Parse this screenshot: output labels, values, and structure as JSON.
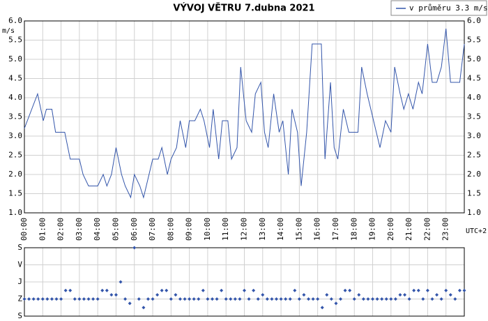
{
  "chart_data": [
    {
      "type": "line",
      "title": "VÝVOJ VĚTRU  7.dubna 2021",
      "y_label": "m/s",
      "x_label": "UTC+2",
      "xlim": [
        0,
        24
      ],
      "xticks": [
        {
          "value": 0,
          "label": "00:00"
        },
        {
          "value": 1,
          "label": "01:00"
        },
        {
          "value": 2,
          "label": "02:00"
        },
        {
          "value": 3,
          "label": "03:00"
        },
        {
          "value": 4,
          "label": "04:00"
        },
        {
          "value": 5,
          "label": "05:00"
        },
        {
          "value": 6,
          "label": "06:00"
        },
        {
          "value": 7,
          "label": "07:00"
        },
        {
          "value": 8,
          "label": "08:00"
        },
        {
          "value": 9,
          "label": "09:00"
        },
        {
          "value": 10,
          "label": "10:00"
        },
        {
          "value": 11,
          "label": "11:00"
        },
        {
          "value": 12,
          "label": "12:00"
        },
        {
          "value": 13,
          "label": "13:00"
        },
        {
          "value": 14,
          "label": "14:00"
        },
        {
          "value": 15,
          "label": "15:00"
        },
        {
          "value": 16,
          "label": "16:00"
        },
        {
          "value": 17,
          "label": "17:00"
        },
        {
          "value": 18,
          "label": "18:00"
        },
        {
          "value": 19,
          "label": "19:00"
        },
        {
          "value": 20,
          "label": "20:00"
        },
        {
          "value": 21,
          "label": "21:00"
        },
        {
          "value": 22,
          "label": "22:00"
        },
        {
          "value": 23,
          "label": "23:00"
        }
      ],
      "ylim": [
        1,
        6
      ],
      "yticks": [
        {
          "value": 1,
          "label": "1.0"
        },
        {
          "value": 1.5,
          "label": "1.5"
        },
        {
          "value": 2,
          "label": "2.0"
        },
        {
          "value": 2.5,
          "label": "2.5"
        },
        {
          "value": 3,
          "label": "3.0"
        },
        {
          "value": 3.5,
          "label": "3.5"
        },
        {
          "value": 4,
          "label": "4.0"
        },
        {
          "value": 4.5,
          "label": "4.5"
        },
        {
          "value": 5,
          "label": "5.0"
        },
        {
          "value": 5.5,
          "label": "5.5"
        },
        {
          "value": 6,
          "label": "6.0"
        }
      ],
      "grid": true,
      "series": [
        {
          "name": "v průměru 3.3 m/s",
          "color": "#3355aa",
          "x": [
            0,
            0.72,
            1.03,
            1.2,
            1.5,
            1.7,
            2.2,
            2.5,
            3.0,
            3.2,
            3.5,
            4.0,
            4.3,
            4.5,
            4.75,
            5.0,
            5.3,
            5.5,
            5.8,
            6.0,
            6.3,
            6.5,
            6.8,
            7.0,
            7.3,
            7.5,
            7.8,
            8.0,
            8.3,
            8.5,
            8.8,
            9.0,
            9.3,
            9.6,
            9.8,
            10.1,
            10.3,
            10.6,
            10.8,
            11.1,
            11.3,
            11.6,
            11.8,
            12.1,
            12.4,
            12.6,
            12.9,
            13.1,
            13.3,
            13.6,
            13.9,
            14.1,
            14.4,
            14.6,
            14.9,
            15.1,
            15.4,
            15.7,
            16.2,
            16.4,
            16.7,
            16.9,
            17.1,
            17.4,
            17.7,
            18.2,
            18.4,
            18.7,
            18.9,
            19.2,
            19.4,
            19.7,
            20.0,
            20.2,
            20.5,
            20.7,
            20.95,
            21.2,
            21.5,
            21.7,
            22.0,
            22.25,
            22.5,
            22.75,
            23.0,
            23.25,
            23.75,
            24
          ],
          "values": [
            3.2,
            4.1,
            3.4,
            3.7,
            3.7,
            3.1,
            3.1,
            2.4,
            2.4,
            2.0,
            1.7,
            1.7,
            2.0,
            1.7,
            2.0,
            2.7,
            2.0,
            1.7,
            1.4,
            2.0,
            1.7,
            1.4,
            2.0,
            2.4,
            2.4,
            2.7,
            2.0,
            2.4,
            2.7,
            3.4,
            2.7,
            3.4,
            3.4,
            3.7,
            3.4,
            2.7,
            3.7,
            2.4,
            3.4,
            3.4,
            2.4,
            2.7,
            4.8,
            3.4,
            3.1,
            4.1,
            4.4,
            3.1,
            2.7,
            4.1,
            3.1,
            3.4,
            2.0,
            3.7,
            3.1,
            1.7,
            3.1,
            5.4,
            5.4,
            2.4,
            4.4,
            2.7,
            2.4,
            3.7,
            3.1,
            3.1,
            4.8,
            4.1,
            3.7,
            3.1,
            2.7,
            3.4,
            3.1,
            4.8,
            4.1,
            3.7,
            4.1,
            3.7,
            4.4,
            4.1,
            5.4,
            4.4,
            4.4,
            4.8,
            5.8,
            4.4,
            4.4,
            5.4
          ]
        }
      ]
    },
    {
      "type": "scatter",
      "xlim": [
        0,
        24
      ],
      "ylim": [
        0,
        360
      ],
      "y_inverted": true,
      "yticks": [
        {
          "value": 0,
          "label": "S"
        },
        {
          "value": 90,
          "label": "V"
        },
        {
          "value": 180,
          "label": "J"
        },
        {
          "value": 270,
          "label": "Z"
        },
        {
          "value": 360,
          "label": "S"
        }
      ],
      "grid": true,
      "series": [
        {
          "color": "#3355aa",
          "x": [
            0,
            0.25,
            0.5,
            0.75,
            1,
            1.25,
            1.5,
            1.75,
            2,
            2.25,
            2.5,
            2.75,
            3,
            3.25,
            3.5,
            3.75,
            4,
            4.25,
            4.5,
            4.75,
            5,
            5.25,
            5.5,
            5.75,
            6,
            6.25,
            6.5,
            6.75,
            7,
            7.25,
            7.5,
            7.75,
            8,
            8.25,
            8.5,
            8.75,
            9,
            9.25,
            9.5,
            9.75,
            10,
            10.25,
            10.5,
            10.75,
            11,
            11.25,
            11.5,
            11.75,
            12,
            12.25,
            12.5,
            12.75,
            13,
            13.25,
            13.5,
            13.75,
            14,
            14.25,
            14.5,
            14.75,
            15,
            15.25,
            15.5,
            15.75,
            16,
            16.25,
            16.5,
            16.75,
            17,
            17.25,
            17.5,
            17.75,
            18,
            18.25,
            18.5,
            18.75,
            19,
            19.25,
            19.5,
            19.75,
            20,
            20.25,
            20.5,
            20.75,
            21,
            21.25,
            21.5,
            21.75,
            22,
            22.25,
            22.5,
            22.75,
            23,
            23.25,
            23.5,
            23.75,
            24
          ],
          "values": [
            270,
            270,
            270,
            270,
            270,
            270,
            270,
            270,
            270,
            225,
            225,
            270,
            270,
            270,
            270,
            270,
            270,
            225,
            225,
            248,
            248,
            180,
            270,
            293,
            0,
            270,
            315,
            270,
            270,
            248,
            225,
            225,
            270,
            248,
            270,
            270,
            270,
            270,
            270,
            225,
            270,
            270,
            270,
            225,
            270,
            270,
            270,
            270,
            225,
            270,
            225,
            270,
            248,
            270,
            270,
            270,
            270,
            270,
            270,
            225,
            270,
            248,
            270,
            270,
            270,
            315,
            248,
            270,
            293,
            270,
            225,
            225,
            270,
            248,
            270,
            270,
            270,
            270,
            270,
            270,
            270,
            270,
            248,
            248,
            270,
            225,
            225,
            270,
            225,
            270,
            248,
            270,
            225,
            248,
            270,
            225,
            225
          ]
        }
      ]
    }
  ]
}
